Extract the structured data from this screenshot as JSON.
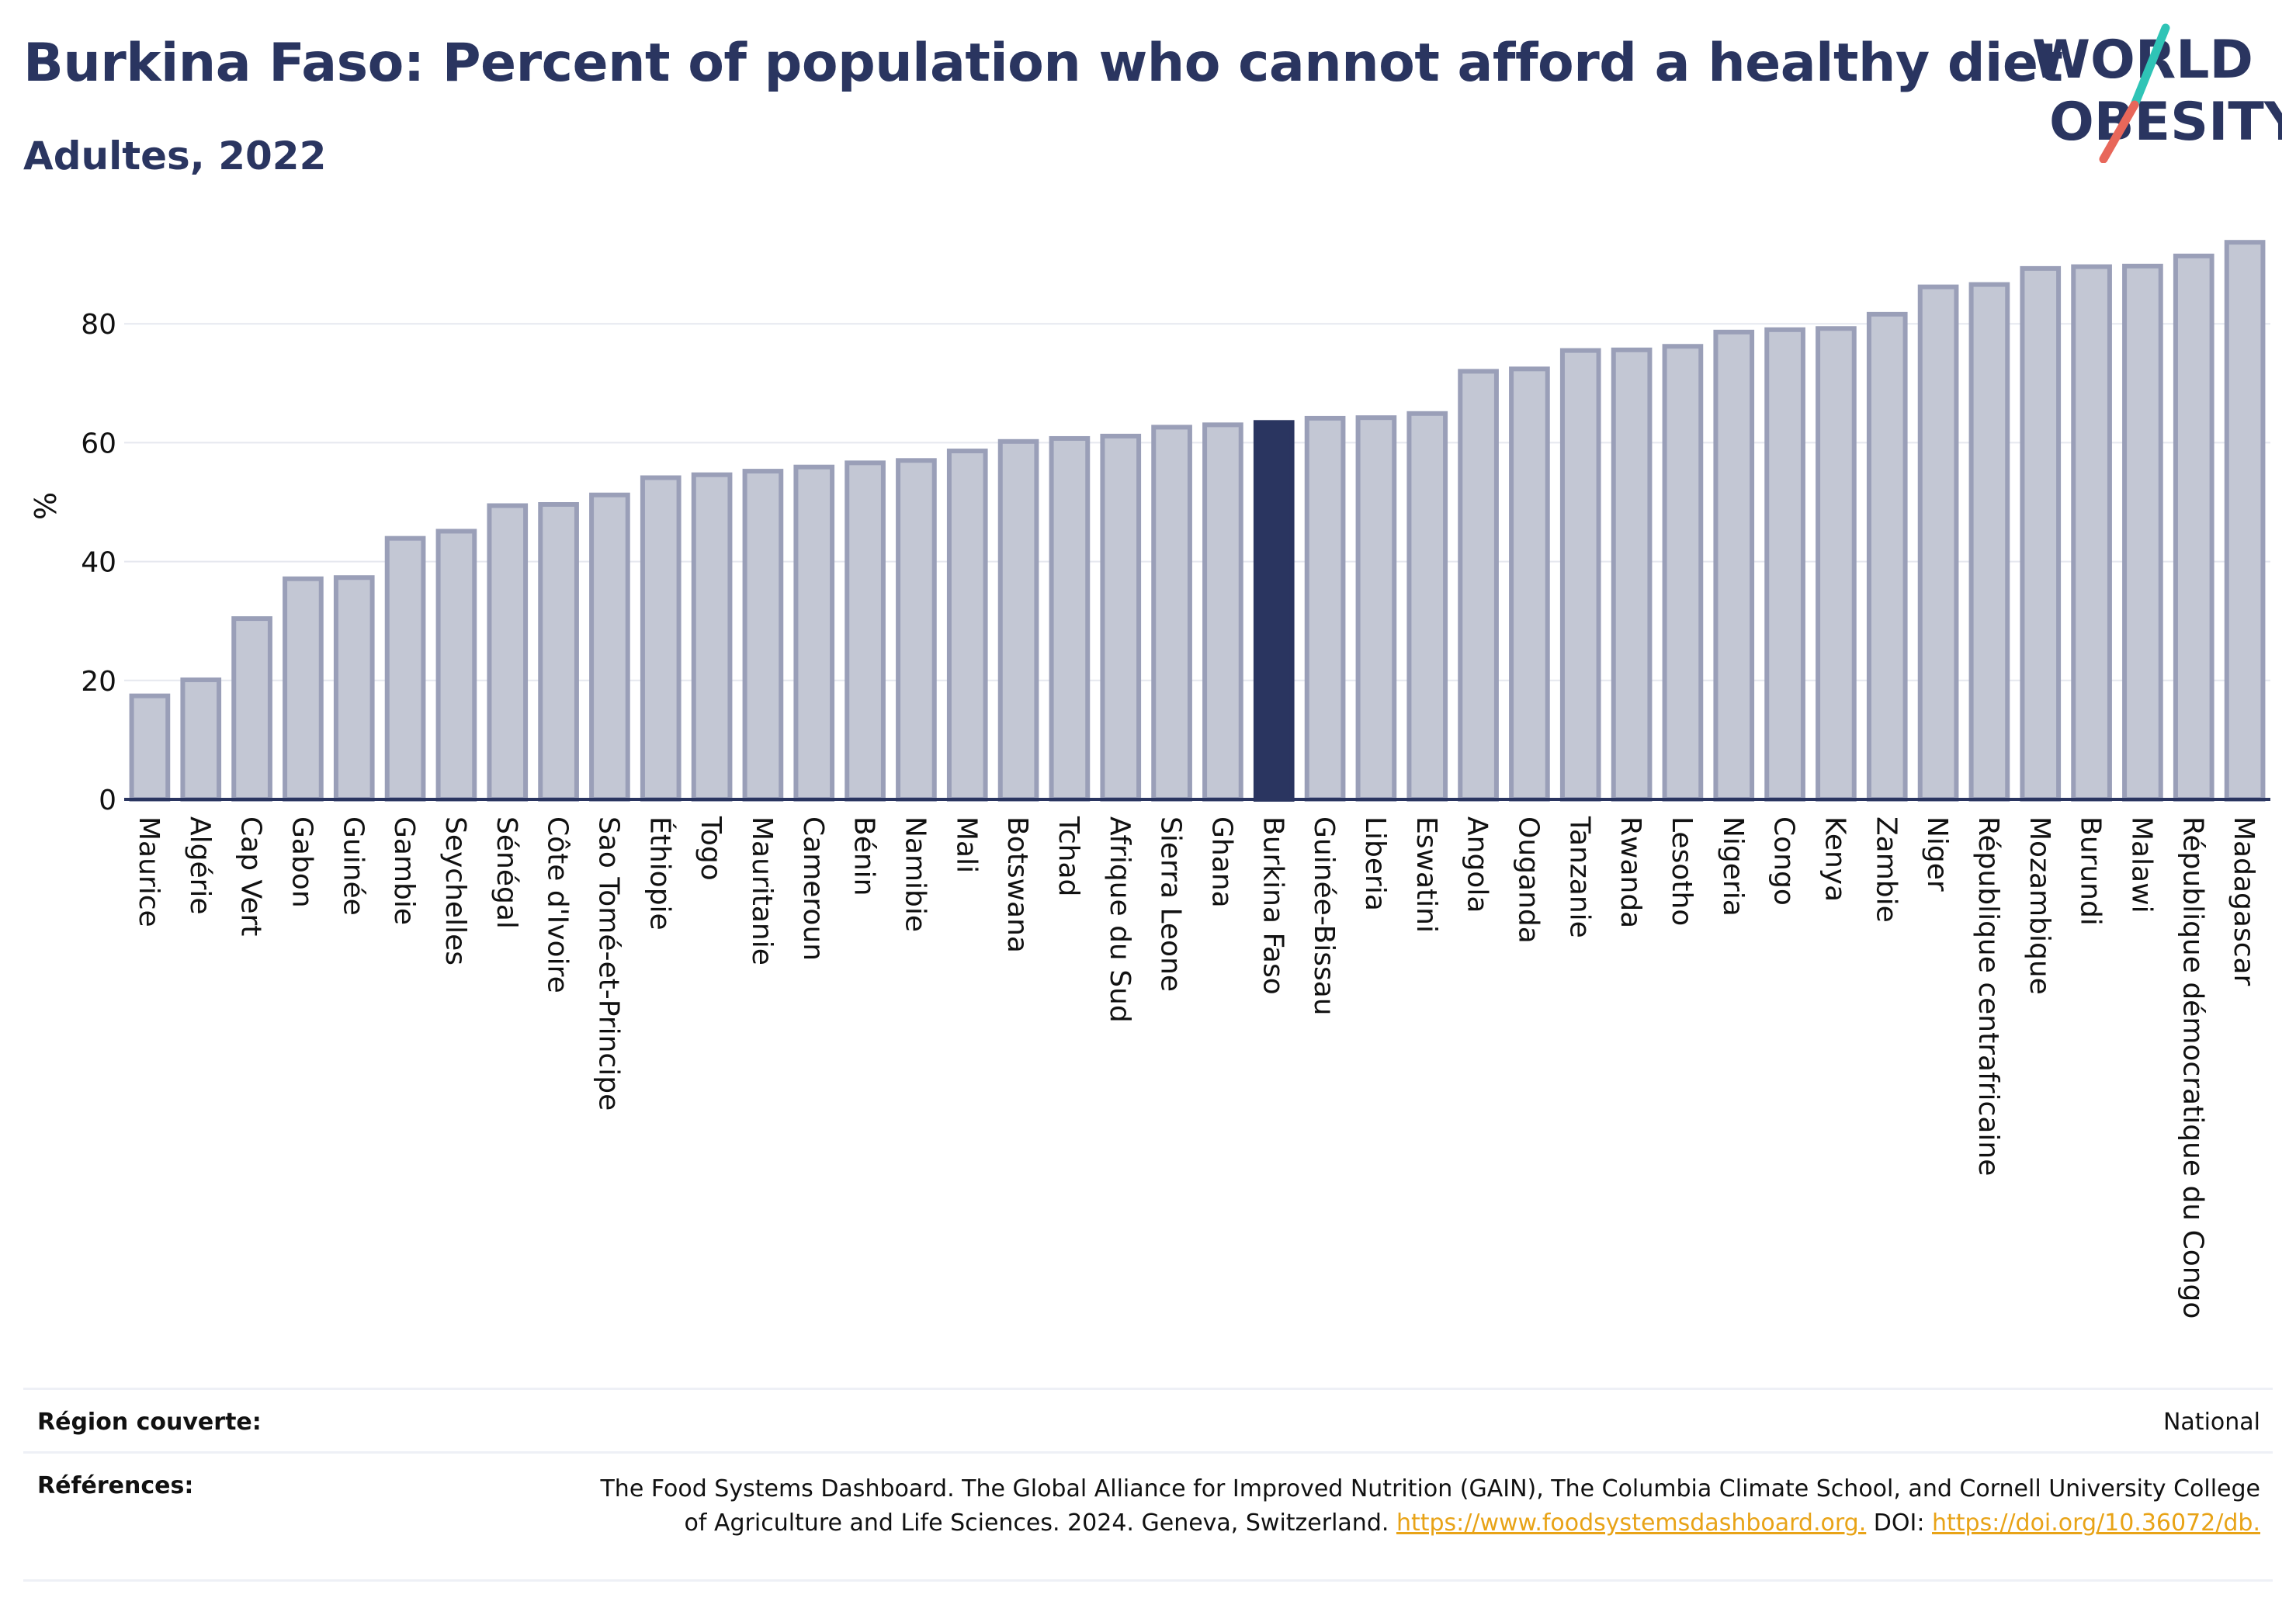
{
  "header": {
    "title": "Burkina Faso: Percent of population who cannot afford a healthy diet",
    "subtitle": "Adultes, 2022"
  },
  "logo": {
    "line1": "WORLD",
    "line2": "OBESITY"
  },
  "colors": {
    "bar": "#c3c7d4",
    "bar_border": "#9a9fb8",
    "highlight": "#2a3560",
    "axis": "#2a3560",
    "grid": "#e6e8ef",
    "link": "#e8a317",
    "logo_text": "#2a3560",
    "logo_slash_top": "#2fc4b6",
    "logo_slash_bottom": "#e8675a"
  },
  "chart_data": {
    "type": "bar",
    "title": "Burkina Faso: Percent of population who cannot afford a healthy diet",
    "subtitle": "Adultes, 2022",
    "ylabel": "%",
    "xlabel": "",
    "ylim": [
      0,
      95
    ],
    "yticks": [
      0,
      20,
      40,
      60,
      80
    ],
    "grid": true,
    "highlight": "Burkina Faso",
    "categories": [
      "Maurice",
      "Algérie",
      "Cap Vert",
      "Gabon",
      "Guinée",
      "Gambie",
      "Seychelles",
      "Sénégal",
      "Côte d'Ivoire",
      "Sao Tomé-et-Principe",
      "Éthiopie",
      "Togo",
      "Mauritanie",
      "Cameroun",
      "Bénin",
      "Namibie",
      "Mali",
      "Botswana",
      "Tchad",
      "Afrique du Sud",
      "Sierra Leone",
      "Ghana",
      "Burkina Faso",
      "Guinée-Bissau",
      "Liberia",
      "Eswatini",
      "Angola",
      "Ouganda",
      "Tanzanie",
      "Rwanda",
      "Lesotho",
      "Nigeria",
      "Congo",
      "Kenya",
      "Zambie",
      "Niger",
      "République centrafricaine",
      "Mozambique",
      "Burundi",
      "Malawi",
      "République démocratique du Congo",
      "Madagascar"
    ],
    "values": [
      17.8,
      20.5,
      30.8,
      37.5,
      37.7,
      44.3,
      45.5,
      49.8,
      50.0,
      51.6,
      54.5,
      55.0,
      55.6,
      56.3,
      57.0,
      57.4,
      59.0,
      60.6,
      61.1,
      61.5,
      63.0,
      63.4,
      63.8,
      64.5,
      64.6,
      65.3,
      72.4,
      72.8,
      75.9,
      76.0,
      76.6,
      79.0,
      79.4,
      79.6,
      82.0,
      86.6,
      87.0,
      89.7,
      90.0,
      90.1,
      91.8,
      94.1
    ]
  },
  "footer": {
    "region_label": "Région couverte:",
    "region_value": "National",
    "refs_label": "Références:",
    "refs_text_1": "The Food Systems Dashboard. The Global Alliance for Improved Nutrition (GAIN), The Columbia Climate School, and Cornell University College of Agriculture and Life Sciences. 2024. Geneva, Switzerland. ",
    "refs_link_1": "https://www.foodsystemsdashboard.org.",
    "refs_text_2": " DOI: ",
    "refs_link_2": "https://doi.org/10.36072/db."
  }
}
